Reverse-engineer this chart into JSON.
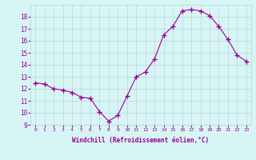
{
  "x": [
    0,
    1,
    2,
    3,
    4,
    5,
    6,
    7,
    8,
    9,
    10,
    11,
    12,
    13,
    14,
    15,
    16,
    17,
    18,
    19,
    20,
    21,
    22,
    23
  ],
  "y": [
    12.5,
    12.4,
    12.0,
    11.9,
    11.7,
    11.3,
    11.2,
    10.1,
    9.3,
    9.8,
    11.4,
    13.0,
    13.4,
    14.5,
    16.5,
    17.2,
    18.5,
    18.6,
    18.5,
    18.1,
    17.2,
    16.1,
    14.8,
    14.3
  ],
  "xlabel": "Windchill (Refroidissement éolien,°C)",
  "ylim": [
    9,
    19
  ],
  "yticks": [
    9,
    10,
    11,
    12,
    13,
    14,
    15,
    16,
    17,
    18
  ],
  "xticks": [
    0,
    1,
    2,
    3,
    4,
    5,
    6,
    7,
    8,
    9,
    10,
    11,
    12,
    13,
    14,
    15,
    16,
    17,
    18,
    19,
    20,
    21,
    22,
    23
  ],
  "line_color": "#990099",
  "marker": "+",
  "marker_size": 4,
  "background_color": "#d8f5f5",
  "grid_color": "#b8d8d8",
  "tick_color": "#990099",
  "label_color": "#990099"
}
